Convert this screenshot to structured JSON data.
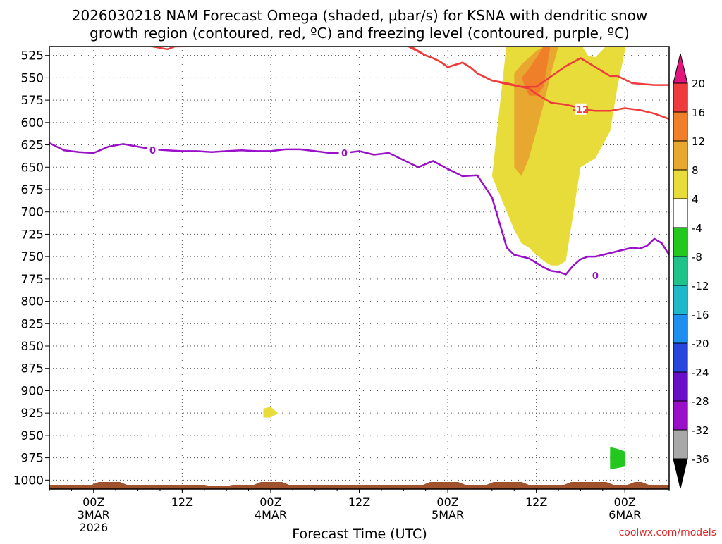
{
  "chart_data": {
    "type": "heatmap",
    "title_line1": "2026030218 NAM Forecast Omega (shaded, μbar/s) for KSNA with dendritic snow",
    "title_line2": "growth region (contoured, red, ºC) and freezing level (contoured, purple, ºC)",
    "xlabel": "Forecast Time (UTC)",
    "credit": "coolwx.com/models",
    "x_unit": "hours since 2026-03-02 18Z",
    "xlim": [
      0,
      84
    ],
    "y_unit": "pressure (hPa)",
    "ylim": [
      515,
      1010
    ],
    "y_ticks": [
      525,
      550,
      575,
      600,
      625,
      650,
      675,
      700,
      725,
      750,
      775,
      800,
      825,
      850,
      875,
      900,
      925,
      950,
      975,
      1000
    ],
    "x_ticks": [
      {
        "x": 6,
        "lines": [
          "00Z",
          "3MAR",
          "2026"
        ]
      },
      {
        "x": 18,
        "lines": [
          "12Z"
        ]
      },
      {
        "x": 30,
        "lines": [
          "00Z",
          "4MAR"
        ]
      },
      {
        "x": 42,
        "lines": [
          "12Z"
        ]
      },
      {
        "x": 54,
        "lines": [
          "00Z",
          "5MAR"
        ]
      },
      {
        "x": 66,
        "lines": [
          "12Z"
        ]
      },
      {
        "x": 78,
        "lines": [
          "00Z",
          "6MAR"
        ]
      }
    ],
    "colorbar": {
      "labels": [
        "20",
        "16",
        "12",
        "8",
        "4",
        "-4",
        "-8",
        "-12",
        "-16",
        "-20",
        "-24",
        "-28",
        "-32",
        "-36"
      ],
      "colors": [
        "#e0147a",
        "#ee3b3b",
        "#f07f2a",
        "#e8a830",
        "#e8dc3a",
        "#ffffff",
        "#22c81e",
        "#1fc38a",
        "#1fb8c8",
        "#1e8ef0",
        "#2846dc",
        "#6a0fc8",
        "#9a10c8",
        "#a8a8a8",
        "#000000"
      ]
    },
    "freezing_level_label": "0",
    "freezing_level_0C": {
      "x": [
        0,
        2,
        4,
        6,
        8,
        10,
        12,
        14,
        16,
        18,
        20,
        22,
        24,
        26,
        28,
        30,
        32,
        34,
        36,
        38,
        40,
        42,
        44,
        46,
        48,
        50,
        52,
        54,
        56,
        58,
        60,
        62,
        63,
        64,
        65,
        66,
        67,
        68,
        69,
        70,
        71,
        72,
        73,
        74,
        75,
        76,
        77,
        78,
        79,
        80,
        81,
        82,
        83,
        84
      ],
      "y": [
        623,
        631,
        633,
        634,
        627,
        624,
        627,
        630,
        631,
        632,
        632,
        633,
        632,
        631,
        632,
        632,
        630,
        630,
        632,
        634,
        634,
        632,
        636,
        634,
        642,
        650,
        643,
        652,
        660,
        659,
        684,
        740,
        748,
        750,
        752,
        757,
        762,
        766,
        767,
        770,
        760,
        753,
        750,
        750,
        748,
        746,
        744,
        742,
        740,
        741,
        738,
        730,
        735,
        748
      ]
    },
    "dendritic_contours_label": "-12",
    "dendritic_contour_upper": {
      "x": [
        13,
        14,
        16,
        17,
        48,
        51,
        52,
        53,
        54,
        56,
        57,
        58,
        60,
        61,
        62,
        64,
        66,
        70,
        72,
        73,
        76,
        77,
        79,
        82,
        84
      ],
      "y": [
        512,
        515,
        518,
        515,
        512,
        525,
        528,
        532,
        538,
        533,
        538,
        545,
        553,
        555,
        557,
        560,
        560,
        537,
        528,
        533,
        548,
        548,
        556,
        558,
        558
      ]
    },
    "dendritic_contour_lower": {
      "x": [
        48,
        51,
        52,
        53,
        54,
        56,
        57,
        58,
        60,
        62,
        63,
        64,
        65,
        66,
        67,
        68,
        70,
        72,
        73,
        74,
        76,
        78,
        80,
        82,
        84
      ],
      "y": [
        510,
        525,
        528,
        532,
        538,
        533,
        538,
        545,
        553,
        556,
        558,
        560,
        562,
        568,
        573,
        578,
        580,
        584,
        586,
        587,
        587,
        584,
        586,
        590,
        596
      ]
    },
    "omega_shaded_regions": [
      {
        "value": 4,
        "x": [
          62,
          63,
          64,
          66,
          68,
          70,
          72,
          73,
          74,
          76,
          77,
          78,
          78,
          77,
          76,
          74,
          72,
          70,
          69,
          68,
          67,
          66,
          65,
          64,
          63,
          62,
          61,
          60
        ],
        "y": [
          510,
          515,
          513,
          510,
          511,
          510,
          512,
          525,
          527,
          510,
          510,
          510,
          520,
          560,
          610,
          640,
          650,
          755,
          760,
          760,
          755,
          748,
          740,
          735,
          720,
          700,
          680,
          660
        ]
      },
      {
        "value": 8,
        "x": [
          63,
          64,
          66,
          68,
          69,
          68,
          67,
          66,
          65,
          64,
          63
        ],
        "y": [
          545,
          535,
          520,
          510,
          515,
          545,
          580,
          610,
          640,
          660,
          650
        ]
      },
      {
        "value": 12,
        "x": [
          64,
          65,
          67,
          68,
          67,
          66,
          65
        ],
        "y": [
          550,
          540,
          515,
          510,
          560,
          570,
          570
        ]
      },
      {
        "value": 4,
        "x": [
          29,
          30,
          31,
          30,
          29
        ],
        "y": [
          920,
          918,
          925,
          930,
          930
        ]
      },
      {
        "value": -8,
        "x": [
          76,
          77,
          78,
          78,
          76
        ],
        "y": [
          963,
          965,
          968,
          985,
          988
        ]
      }
    ]
  }
}
